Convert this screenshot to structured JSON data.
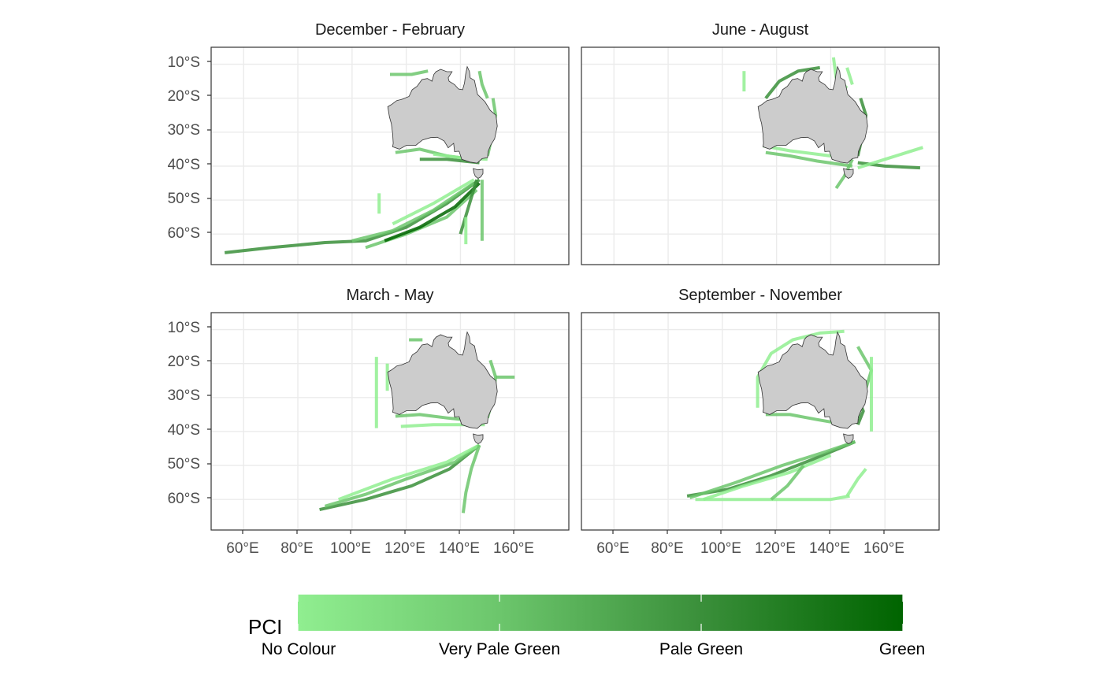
{
  "chart_data": {
    "type": "heatmap",
    "xlabel": "",
    "ylabel": "",
    "xlim": [
      48,
      180
    ],
    "ylim": [
      -69,
      -5
    ],
    "x_ticks": [
      60,
      80,
      100,
      120,
      140,
      160
    ],
    "x_tick_labels": [
      "60°E",
      "80°E",
      "100°E",
      "120°E",
      "140°E",
      "160°E"
    ],
    "y_ticks": [
      -10,
      -20,
      -30,
      -40,
      -50,
      -60
    ],
    "y_tick_labels": [
      "10°S",
      "20°S",
      "30°S",
      "40°S",
      "50°S",
      "60°S"
    ],
    "grid": true,
    "land_color": "#cccccc",
    "legend": {
      "title": "PCI",
      "placement": "bottom",
      "labels": [
        "No Colour",
        "Very Pale Green",
        "Pale Green",
        "Green"
      ],
      "colors": [
        "#90ee90",
        "#6cc66c",
        "#3a8f3a",
        "#006400"
      ]
    },
    "panels": [
      {
        "title": "December - February",
        "tracks": [
          {
            "level": 2,
            "points": [
              [
                53,
                -65.5
              ],
              [
                70,
                -64
              ],
              [
                90,
                -62.5
              ],
              [
                105,
                -62
              ],
              [
                120,
                -58
              ],
              [
                135,
                -51
              ],
              [
                147,
                -44
              ]
            ]
          },
          {
            "level": 1,
            "points": [
              [
                100,
                -62
              ],
              [
                115,
                -59
              ],
              [
                130,
                -53
              ],
              [
                145,
                -45
              ]
            ]
          },
          {
            "level": 1,
            "points": [
              [
                105,
                -64
              ],
              [
                120,
                -60
              ],
              [
                135,
                -55
              ],
              [
                146,
                -47
              ]
            ]
          },
          {
            "level": 3,
            "points": [
              [
                112,
                -62
              ],
              [
                125,
                -58
              ],
              [
                138,
                -52
              ],
              [
                147,
                -45
              ]
            ]
          },
          {
            "level": 0,
            "points": [
              [
                115,
                -57
              ],
              [
                130,
                -51
              ],
              [
                145,
                -44
              ]
            ]
          },
          {
            "level": 2,
            "points": [
              [
                140,
                -60
              ],
              [
                143,
                -52
              ],
              [
                146,
                -44
              ]
            ]
          },
          {
            "level": 1,
            "points": [
              [
                148,
                -62
              ],
              [
                148,
                -44
              ]
            ]
          },
          {
            "level": 0,
            "points": [
              [
                142,
                -63
              ],
              [
                142,
                -55
              ]
            ]
          },
          {
            "level": 0,
            "points": [
              [
                110,
                -48
              ],
              [
                110,
                -54
              ]
            ]
          },
          {
            "level": 1,
            "points": [
              [
                116,
                -36
              ],
              [
                125,
                -35
              ],
              [
                135,
                -37
              ],
              [
                145,
                -38
              ]
            ]
          },
          {
            "level": 2,
            "points": [
              [
                125,
                -38
              ],
              [
                135,
                -38
              ],
              [
                147,
                -39
              ]
            ]
          },
          {
            "level": 0,
            "points": [
              [
                130,
                -36.5
              ],
              [
                140,
                -37.5
              ],
              [
                150,
                -38
              ]
            ]
          },
          {
            "level": 1,
            "points": [
              [
                150,
                -37
              ],
              [
                152,
                -30
              ],
              [
                153,
                -25
              ],
              [
                152,
                -20
              ]
            ]
          },
          {
            "level": 1,
            "points": [
              [
                147,
                -12
              ],
              [
                148,
                -16
              ],
              [
                150,
                -20
              ]
            ]
          },
          {
            "level": 1,
            "points": [
              [
                114,
                -13
              ],
              [
                122,
                -13
              ],
              [
                128,
                -12
              ]
            ]
          }
        ]
      },
      {
        "title": "June - August",
        "tracks": [
          {
            "level": 1,
            "points": [
              [
                116,
                -36
              ],
              [
                125,
                -37
              ],
              [
                135,
                -38.5
              ],
              [
                148,
                -40
              ]
            ]
          },
          {
            "level": 0,
            "points": [
              [
                115,
                -34
              ],
              [
                125,
                -35.5
              ],
              [
                140,
                -37
              ]
            ]
          },
          {
            "level": 2,
            "points": [
              [
                150,
                -39
              ],
              [
                160,
                -40
              ],
              [
                173,
                -40.5
              ]
            ]
          },
          {
            "level": 0,
            "points": [
              [
                150,
                -40.5
              ],
              [
                160,
                -38
              ],
              [
                168,
                -36
              ],
              [
                174,
                -34.5
              ]
            ]
          },
          {
            "level": 1,
            "points": [
              [
                148,
                -38
              ],
              [
                145,
                -43
              ],
              [
                142,
                -46.5
              ]
            ]
          },
          {
            "level": 2,
            "points": [
              [
                150,
                -37
              ],
              [
                152,
                -30
              ],
              [
                153,
                -25
              ],
              [
                151,
                -20
              ]
            ]
          },
          {
            "level": 2,
            "points": [
              [
                116,
                -20
              ],
              [
                121,
                -15
              ],
              [
                128,
                -12
              ],
              [
                136,
                -11
              ]
            ]
          },
          {
            "level": 0,
            "points": [
              [
                141,
                -8
              ],
              [
                142,
                -14
              ],
              [
                146,
                -17
              ]
            ]
          },
          {
            "level": 0,
            "points": [
              [
                108,
                -12
              ],
              [
                108,
                -18
              ]
            ]
          },
          {
            "level": 0,
            "points": [
              [
                146,
                -11
              ],
              [
                148,
                -16
              ]
            ]
          }
        ]
      },
      {
        "title": "March - May",
        "tracks": [
          {
            "level": 2,
            "points": [
              [
                88,
                -63
              ],
              [
                105,
                -60
              ],
              [
                122,
                -56
              ],
              [
                136,
                -51
              ],
              [
                147,
                -44
              ]
            ]
          },
          {
            "level": 1,
            "points": [
              [
                90,
                -62
              ],
              [
                105,
                -58.5
              ],
              [
                120,
                -54
              ],
              [
                138,
                -49
              ],
              [
                147,
                -44
              ]
            ]
          },
          {
            "level": 0,
            "points": [
              [
                95,
                -60
              ],
              [
                115,
                -54
              ],
              [
                135,
                -49
              ],
              [
                147,
                -44
              ]
            ]
          },
          {
            "level": 1,
            "points": [
              [
                141,
                -64
              ],
              [
                142,
                -58
              ],
              [
                144,
                -51
              ],
              [
                147,
                -44
              ]
            ]
          },
          {
            "level": 0,
            "points": [
              [
                109,
                -18
              ],
              [
                109,
                -39
              ]
            ]
          },
          {
            "level": 1,
            "points": [
              [
                116,
                -35.5
              ],
              [
                125,
                -35
              ],
              [
                135,
                -36
              ],
              [
                147,
                -37
              ]
            ]
          },
          {
            "level": 0,
            "points": [
              [
                118,
                -38.5
              ],
              [
                130,
                -38
              ],
              [
                140,
                -38
              ],
              [
                149,
                -38
              ]
            ]
          },
          {
            "level": 1,
            "points": [
              [
                150,
                -36
              ],
              [
                152,
                -30
              ],
              [
                153,
                -24
              ],
              [
                151,
                -19
              ]
            ]
          },
          {
            "level": 1,
            "points": [
              [
                153,
                -24
              ],
              [
                158,
                -24
              ],
              [
                160,
                -24
              ]
            ]
          },
          {
            "level": 0,
            "points": [
              [
                113,
                -20
              ],
              [
                113,
                -28
              ]
            ]
          },
          {
            "level": 1,
            "points": [
              [
                121,
                -13
              ],
              [
                126,
                -13
              ]
            ]
          }
        ]
      },
      {
        "title": "September - November",
        "tracks": [
          {
            "level": 2,
            "points": [
              [
                87,
                -59
              ],
              [
                102,
                -57
              ],
              [
                118,
                -53
              ],
              [
                134,
                -48
              ],
              [
                149,
                -43
              ]
            ]
          },
          {
            "level": 1,
            "points": [
              [
                88,
                -59.5
              ],
              [
                105,
                -55
              ],
              [
                122,
                -50
              ],
              [
                138,
                -46
              ],
              [
                149,
                -43
              ]
            ]
          },
          {
            "level": 0,
            "points": [
              [
                93,
                -60
              ],
              [
                108,
                -56
              ],
              [
                125,
                -52
              ],
              [
                140,
                -47
              ]
            ]
          },
          {
            "level": 0,
            "points": [
              [
                90,
                -60
              ],
              [
                120,
                -60
              ],
              [
                140,
                -60
              ],
              [
                147,
                -59
              ]
            ]
          },
          {
            "level": 1,
            "points": [
              [
                118,
                -60
              ],
              [
                124,
                -56
              ],
              [
                130,
                -50
              ]
            ]
          },
          {
            "level": 0,
            "points": [
              [
                146,
                -59
              ],
              [
                150,
                -54
              ],
              [
                153,
                -51
              ]
            ]
          },
          {
            "level": 1,
            "points": [
              [
                116,
                -35
              ],
              [
                125,
                -35
              ],
              [
                135,
                -36.5
              ],
              [
                146,
                -38
              ]
            ]
          },
          {
            "level": 0,
            "points": [
              [
                113,
                -33
              ],
              [
                113,
                -24
              ],
              [
                118,
                -17
              ],
              [
                126,
                -13
              ],
              [
                136,
                -11
              ],
              [
                145,
                -10.5
              ]
            ]
          },
          {
            "level": 1,
            "points": [
              [
                150,
                -36
              ],
              [
                152,
                -30
              ],
              [
                155,
                -22
              ],
              [
                150,
                -15
              ]
            ]
          },
          {
            "level": 0,
            "points": [
              [
                155,
                -18
              ],
              [
                155,
                -40
              ]
            ]
          },
          {
            "level": 2,
            "points": [
              [
                150,
                -38
              ],
              [
                152,
                -34
              ],
              [
                150,
                -30
              ]
            ]
          }
        ]
      }
    ]
  }
}
